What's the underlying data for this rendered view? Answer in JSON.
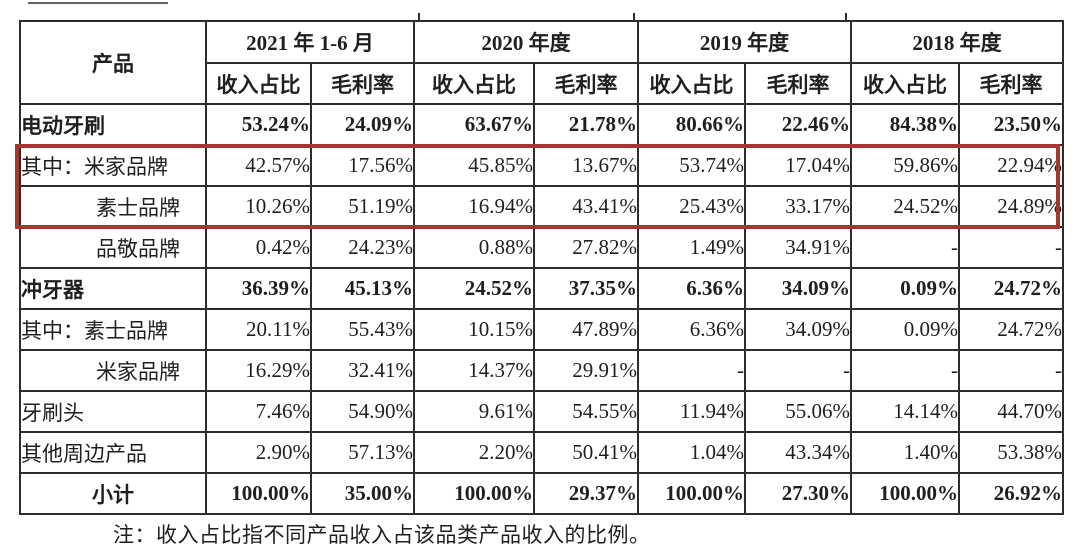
{
  "table": {
    "product_header": "产品",
    "period_headers": [
      "2021 年 1-6 月",
      "2020 年度",
      "2019 年度",
      "2018 年度"
    ],
    "sub_headers": [
      "收入占比",
      "毛利率"
    ],
    "rows": [
      {
        "label": "电动牙刷",
        "bold": true,
        "indent": "none",
        "values": [
          "53.24%",
          "24.09%",
          "63.67%",
          "21.78%",
          "80.66%",
          "22.46%",
          "84.38%",
          "23.50%"
        ]
      },
      {
        "label": "其中：米家品牌",
        "bold": false,
        "indent": "none",
        "values": [
          "42.57%",
          "17.56%",
          "45.85%",
          "13.67%",
          "53.74%",
          "17.04%",
          "59.86%",
          "22.94%"
        ]
      },
      {
        "label": "素士品牌",
        "bold": false,
        "indent": "sub",
        "values": [
          "10.26%",
          "51.19%",
          "16.94%",
          "43.41%",
          "25.43%",
          "33.17%",
          "24.52%",
          "24.89%"
        ]
      },
      {
        "label": "品敬品牌",
        "bold": false,
        "indent": "sub",
        "values": [
          "0.42%",
          "24.23%",
          "0.88%",
          "27.82%",
          "1.49%",
          "34.91%",
          "-",
          "-"
        ]
      },
      {
        "label": "冲牙器",
        "bold": true,
        "indent": "none",
        "values": [
          "36.39%",
          "45.13%",
          "24.52%",
          "37.35%",
          "6.36%",
          "34.09%",
          "0.09%",
          "24.72%"
        ]
      },
      {
        "label": "其中：素士品牌",
        "bold": false,
        "indent": "none",
        "values": [
          "20.11%",
          "55.43%",
          "10.15%",
          "47.89%",
          "6.36%",
          "34.09%",
          "0.09%",
          "24.72%"
        ]
      },
      {
        "label": "米家品牌",
        "bold": false,
        "indent": "sub",
        "values": [
          "16.29%",
          "32.41%",
          "14.37%",
          "29.91%",
          "-",
          "-",
          "-",
          "-"
        ]
      },
      {
        "label": "牙刷头",
        "bold": false,
        "indent": "none",
        "values": [
          "7.46%",
          "54.90%",
          "9.61%",
          "54.55%",
          "11.94%",
          "55.06%",
          "14.14%",
          "44.70%"
        ]
      },
      {
        "label": "其他周边产品",
        "bold": false,
        "indent": "none",
        "values": [
          "2.90%",
          "57.13%",
          "2.20%",
          "50.41%",
          "1.04%",
          "43.34%",
          "1.40%",
          "53.38%"
        ]
      },
      {
        "label": "小计",
        "bold": true,
        "indent": "center",
        "values": [
          "100.00%",
          "35.00%",
          "100.00%",
          "29.37%",
          "100.00%",
          "27.30%",
          "100.00%",
          "26.92%"
        ]
      }
    ],
    "highlighted_row_labels": [
      "其中：米家品牌",
      "素士品牌"
    ]
  },
  "note": "注：收入占比指不同产品收入占该品类产品收入的比例。",
  "colors": {
    "highlight_border": "#a93531",
    "table_border": "#2d2d2d",
    "text": "#1f1f1f",
    "background": "#ffffff"
  }
}
